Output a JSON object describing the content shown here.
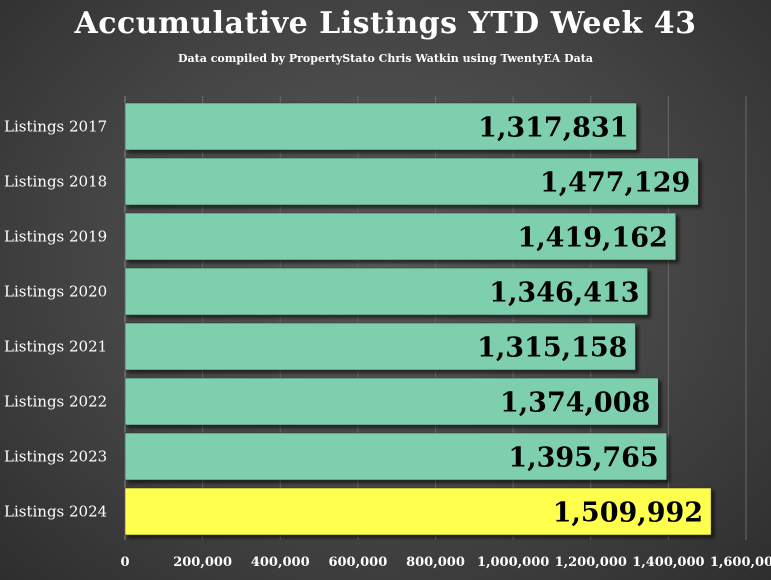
{
  "chart_data": {
    "type": "bar",
    "orientation": "horizontal",
    "title": "Accumulative Listings YTD Week 43",
    "subtitle": "Data compiled by PropertyStato Chris Watkin using TwentyEA Data",
    "categories": [
      "Listings 2017",
      "Listings 2018",
      "Listings 2019",
      "Listings 2020",
      "Listings 2021",
      "Listings 2022",
      "Listings 2023",
      "Listings 2024"
    ],
    "values": [
      1317831,
      1477129,
      1419162,
      1346413,
      1315158,
      1374008,
      1395765,
      1509992
    ],
    "value_labels": [
      "1,317,831",
      "1,477,129",
      "1,419,162",
      "1,346,413",
      "1,315,158",
      "1,374,008",
      "1,395,765",
      "1,509,992"
    ],
    "bar_colors": [
      "#7ecfad",
      "#7ecfad",
      "#7ecfad",
      "#7ecfad",
      "#7ecfad",
      "#7ecfad",
      "#7ecfad",
      "#ffff4d"
    ],
    "x_ticks": [
      0,
      200000,
      400000,
      600000,
      800000,
      1000000,
      1200000,
      1400000,
      1600000
    ],
    "x_tick_labels": [
      "0",
      "200,000",
      "400,000",
      "600,000",
      "800,000",
      "1,000,000",
      "1,200,000",
      "1,400,000",
      "1,600,000"
    ],
    "xlim": [
      0,
      1600000
    ],
    "xlabel": "",
    "ylabel": "",
    "grid": "vertical",
    "legend": "none"
  }
}
